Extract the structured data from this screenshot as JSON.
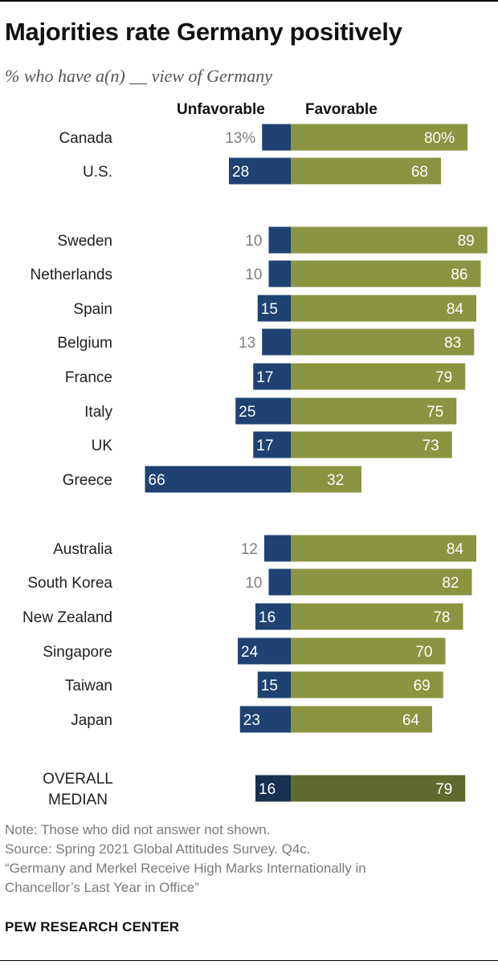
{
  "title": "Majorities rate Germany positively",
  "subtitle": "% who have a(n) __ view of Germany",
  "chart_data": {
    "type": "bar",
    "orientation": "horizontal-diverging",
    "column_headers": [
      "Unfavorable",
      "Favorable"
    ],
    "categories": [
      "Canada",
      "U.S.",
      "Sweden",
      "Netherlands",
      "Spain",
      "Belgium",
      "France",
      "Italy",
      "UK",
      "Greece",
      "Australia",
      "South Korea",
      "New Zealand",
      "Singapore",
      "Taiwan",
      "Japan",
      "OVERALL MEDIAN"
    ],
    "category_display": [
      "Canada",
      "U.S.",
      "Sweden",
      "Netherlands",
      "Spain",
      "Belgium",
      "France",
      "Italy",
      "UK",
      "Greece",
      "Australia",
      "South Korea",
      "New Zealand",
      "Singapore",
      "Taiwan",
      "Japan",
      [
        "OVERALL",
        "MEDIAN"
      ]
    ],
    "groups": [
      [
        0,
        1
      ],
      [
        2,
        3,
        4,
        5,
        6,
        7,
        8,
        9
      ],
      [
        10,
        11,
        12,
        13,
        14,
        15
      ],
      [
        16
      ]
    ],
    "series": [
      {
        "name": "Unfavorable",
        "values": [
          13,
          28,
          10,
          10,
          15,
          13,
          17,
          25,
          17,
          66,
          12,
          10,
          16,
          24,
          15,
          23,
          16
        ]
      },
      {
        "name": "Favorable",
        "values": [
          80,
          68,
          89,
          86,
          84,
          83,
          79,
          75,
          73,
          32,
          84,
          82,
          78,
          70,
          69,
          64,
          79
        ]
      }
    ],
    "unfavorable_labels": [
      "13%",
      "28",
      "10",
      "10",
      "15",
      "13",
      "17",
      "25",
      "17",
      "66",
      "12",
      "10",
      "16",
      "24",
      "15",
      "23",
      "16"
    ],
    "favorable_labels": [
      "80%",
      "68",
      "89",
      "86",
      "84",
      "83",
      "79",
      "75",
      "73",
      "32",
      "84",
      "82",
      "78",
      "70",
      "69",
      "64",
      "79"
    ],
    "colors": {
      "unfavorable": "#1f4273",
      "favorable": "#8b9440",
      "median_unfavorable": "#172f52",
      "median_favorable": "#5f6a2e",
      "label_outside": "#7f7f7f",
      "label_inside": "#ffffff"
    }
  },
  "notes": [
    "Note: Those who did not answer not shown.",
    "Source: Spring 2021 Global Attitudes Survey. Q4c.",
    "“Germany and Merkel Receive High Marks Internationally in",
    "Chancellor’s Last Year in Office”"
  ],
  "footer": "PEW RESEARCH CENTER"
}
